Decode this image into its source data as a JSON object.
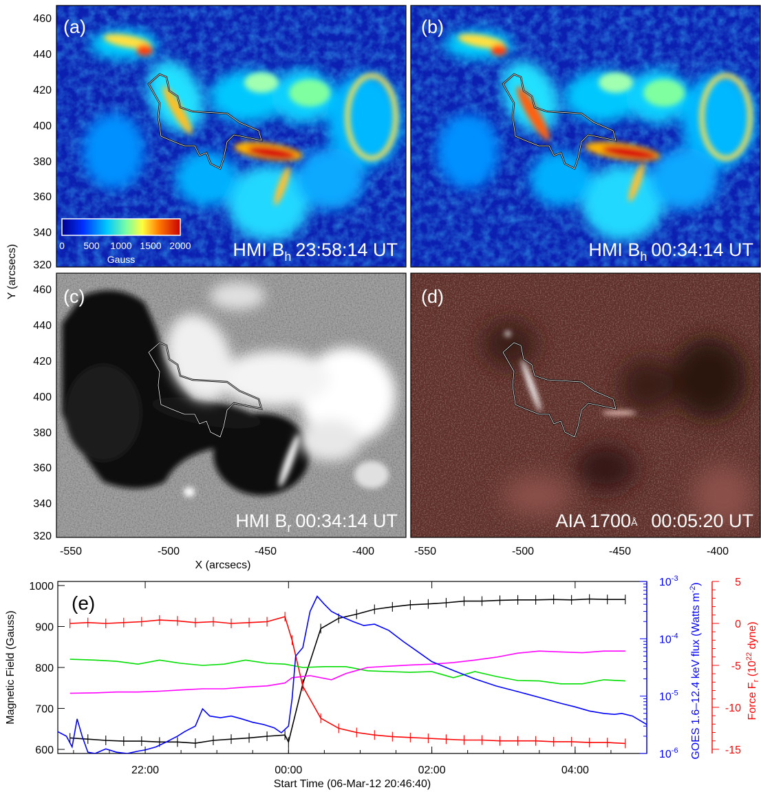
{
  "panels": [
    {
      "label": "(a)",
      "caption_prefix": "HMI B",
      "caption_sub": "h",
      "caption_time": "23:58:14 UT",
      "kind": "bh"
    },
    {
      "label": "(b)",
      "caption_prefix": "HMI B",
      "caption_sub": "h",
      "caption_time": "00:34:14 UT",
      "kind": "bh"
    },
    {
      "label": "(c)",
      "caption_prefix": "HMI B",
      "caption_sub": "r",
      "caption_time": "00:34:14 UT",
      "kind": "br"
    },
    {
      "label": "(d)",
      "caption_prefix": "AIA 1700",
      "caption_sub": "Å",
      "caption_time": "00:05:20 UT",
      "kind": "aia"
    }
  ],
  "colorbar": {
    "ticks": [
      "0",
      "500",
      "1000",
      "1500",
      "2000"
    ],
    "unit": "Gauss"
  },
  "map_axes": {
    "x_ticks": [
      "-550",
      "-500",
      "-450",
      "-400"
    ],
    "y_ticks": [
      "460",
      "440",
      "420",
      "400",
      "380",
      "360",
      "340",
      "320"
    ],
    "xlabel": "X (arcsecs)",
    "ylabel": "Y (arcsecs)",
    "colors": {
      "bh_low": "#0b1fb0",
      "bh_high": "#c81010",
      "aia_bg": "#5e2e28",
      "br_bg": "#9a9a9a"
    }
  },
  "chart_data": {
    "type": "line",
    "panel_label": "(e)",
    "xlabel": "Start Time (06-Mar-12 20:46:40)",
    "x_ticks": [
      "22:00",
      "00:00",
      "02:00",
      "04:00"
    ],
    "left_axis": {
      "label": "Magnetic Field (Gauss)",
      "ticks": [
        "1000",
        "900",
        "800",
        "700",
        "600"
      ],
      "ylim": [
        590,
        1010
      ]
    },
    "goes_axis": {
      "label_main": "GOES 1.6–12.4 keV flux (Watts m",
      "label_exp": "-2",
      "label_end": ")",
      "ticks": [
        {
          "base": "10",
          "exp": "-3"
        },
        {
          "base": "10",
          "exp": "-4"
        },
        {
          "base": "10",
          "exp": "-5"
        },
        {
          "base": "10",
          "exp": "-6"
        }
      ],
      "ylim": [
        1e-06,
        0.001
      ],
      "scale": "log",
      "color": "#0000ff"
    },
    "force_axis": {
      "label_main": "Force F",
      "label_sub": "r",
      "label_mid": " (10",
      "label_exp": "22",
      "label_end": " dyne)",
      "ticks": [
        "5",
        "0",
        "-5",
        "-10",
        "-15"
      ],
      "ylim": [
        -15.5,
        5
      ],
      "color": "#ff0000"
    },
    "xlim_hours": [
      20.78,
      29.0
    ],
    "series": [
      {
        "color": "#000000",
        "axis": "left",
        "errorbars": true,
        "x": [
          20.95,
          21.2,
          21.45,
          21.7,
          21.95,
          22.2,
          22.45,
          22.7,
          22.95,
          23.2,
          23.45,
          23.7,
          23.95,
          24.0,
          24.2,
          24.45,
          24.7,
          24.95,
          25.2,
          25.45,
          25.7,
          25.95,
          26.2,
          26.45,
          26.7,
          26.95,
          27.2,
          27.45,
          27.7,
          27.95,
          28.2,
          28.45,
          28.7
        ],
        "y": [
          628,
          625,
          622,
          620,
          620,
          618,
          618,
          615,
          622,
          625,
          628,
          632,
          635,
          618,
          760,
          895,
          920,
          930,
          942,
          948,
          953,
          955,
          958,
          962,
          962,
          964,
          965,
          965,
          966,
          965,
          967,
          966,
          966
        ]
      },
      {
        "color": "#ff0000",
        "axis": "force",
        "errorbars": true,
        "x": [
          20.95,
          21.2,
          21.45,
          21.7,
          21.95,
          22.2,
          22.45,
          22.7,
          22.95,
          23.2,
          23.45,
          23.7,
          23.95,
          24.05,
          24.2,
          24.45,
          24.7,
          24.95,
          25.2,
          25.45,
          25.7,
          25.95,
          26.2,
          26.45,
          26.7,
          26.95,
          27.2,
          27.45,
          27.7,
          27.95,
          28.2,
          28.45,
          28.7
        ],
        "y": [
          0,
          0.1,
          0,
          0.1,
          0.2,
          0.4,
          0.3,
          0.1,
          0.2,
          0,
          0.1,
          0.2,
          0.8,
          -2,
          -7.5,
          -11.3,
          -12.5,
          -13,
          -13.3,
          -13.5,
          -13.6,
          -13.7,
          -13.8,
          -13.9,
          -13.9,
          -14,
          -14,
          -14,
          -14.1,
          -14.1,
          -14.2,
          -14.2,
          -14.3
        ]
      },
      {
        "color": "#00dd00",
        "axis": "left",
        "errorbars": false,
        "x": [
          20.95,
          21.3,
          21.6,
          21.9,
          22.2,
          22.5,
          22.8,
          23.1,
          23.4,
          23.7,
          23.95,
          24.2,
          24.5,
          24.8,
          25.1,
          25.4,
          25.7,
          26.0,
          26.3,
          26.6,
          26.9,
          27.2,
          27.5,
          27.8,
          28.1,
          28.4,
          28.7
        ],
        "y": [
          820,
          818,
          815,
          808,
          818,
          810,
          805,
          808,
          818,
          810,
          808,
          800,
          802,
          802,
          792,
          790,
          788,
          790,
          775,
          790,
          778,
          768,
          767,
          760,
          760,
          770,
          767
        ]
      },
      {
        "color": "#ff00ff",
        "axis": "left",
        "errorbars": false,
        "x": [
          20.95,
          21.3,
          21.6,
          21.9,
          22.2,
          22.5,
          22.8,
          23.1,
          23.4,
          23.7,
          23.95,
          24.05,
          24.3,
          24.6,
          24.8,
          25.1,
          25.4,
          25.7,
          26.0,
          26.3,
          26.6,
          26.9,
          27.2,
          27.5,
          27.8,
          28.1,
          28.4,
          28.7
        ],
        "y": [
          737,
          738,
          740,
          740,
          742,
          745,
          748,
          748,
          752,
          755,
          762,
          775,
          780,
          770,
          785,
          800,
          803,
          806,
          808,
          812,
          818,
          825,
          835,
          840,
          838,
          836,
          840,
          840
        ]
      },
      {
        "color": "#0000ff",
        "axis": "goes",
        "errorbars": false,
        "x": [
          20.78,
          20.9,
          20.98,
          21.05,
          21.12,
          21.2,
          21.3,
          21.45,
          21.6,
          21.75,
          21.9,
          22.0,
          22.15,
          22.3,
          22.45,
          22.55,
          22.7,
          22.8,
          22.9,
          23.05,
          23.2,
          23.35,
          23.5,
          23.65,
          23.8,
          23.9,
          24.0,
          24.05,
          24.1,
          24.2,
          24.3,
          24.4,
          24.5,
          24.6,
          24.75,
          24.9,
          25.05,
          25.2,
          25.4,
          25.6,
          25.8,
          26.0,
          26.3,
          26.6,
          26.9,
          27.2,
          27.5,
          27.8,
          28.0,
          28.2,
          28.4,
          28.55,
          28.65,
          28.8,
          29.0
        ],
        "y": [
          2.4e-06,
          2e-06,
          1.3e-06,
          4e-06,
          2e-06,
          1.05e-06,
          1e-06,
          1.2e-06,
          1.05e-06,
          1e-06,
          1.1e-06,
          1.15e-06,
          1.3e-06,
          1.6e-06,
          2e-06,
          2.4e-06,
          3e-06,
          6e-06,
          4.5e-06,
          4.2e-06,
          4.5e-06,
          4e-06,
          3.5e-06,
          3.2e-06,
          2.8e-06,
          2.3e-06,
          3e-06,
          9e-06,
          5e-05,
          7e-05,
          0.0003,
          0.00055,
          0.0004,
          0.0003,
          0.00024,
          0.0002,
          0.00017,
          0.00018,
          0.00014,
          9e-05,
          6e-05,
          4e-05,
          2.8e-05,
          2e-05,
          1.5e-05,
          1.2e-05,
          9.5e-06,
          7.5e-06,
          6.5e-06,
          5.5e-06,
          5e-06,
          4.8e-06,
          5e-06,
          4.5e-06,
          3.2e-06
        ]
      }
    ]
  }
}
